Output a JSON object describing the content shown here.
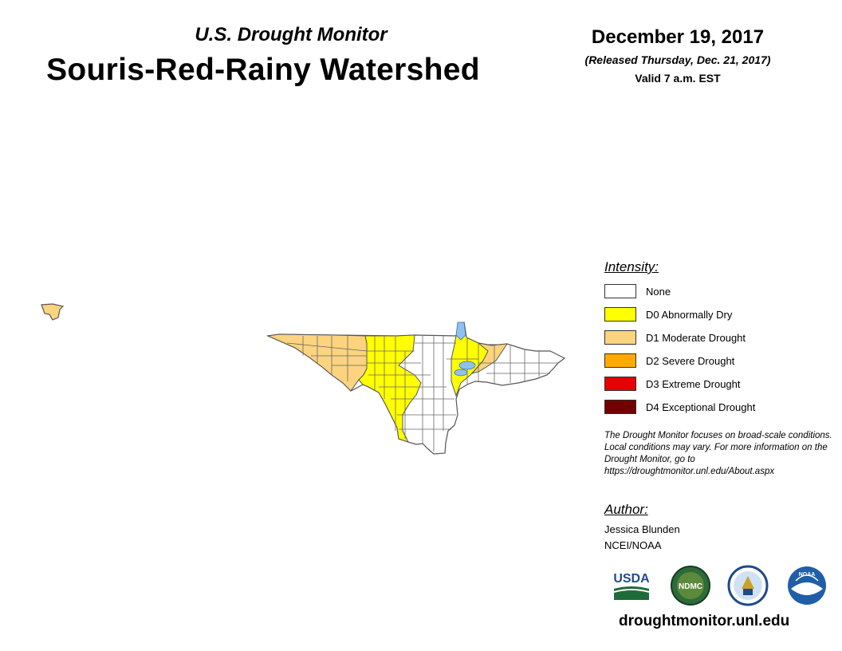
{
  "header": {
    "subtitle": "U.S. Drought Monitor",
    "title": "Souris-Red-Rainy Watershed",
    "date": "December 19, 2017",
    "released": "(Released Thursday, Dec. 21, 2017)",
    "valid": "Valid 7 a.m. EST"
  },
  "legend": {
    "title": "Intensity:",
    "items": [
      {
        "label": "None",
        "color": "#ffffff"
      },
      {
        "label": "D0 Abnormally Dry",
        "color": "#ffff00"
      },
      {
        "label": "D1 Moderate Drought",
        "color": "#fcd37f"
      },
      {
        "label": "D2 Severe Drought",
        "color": "#ffaa00"
      },
      {
        "label": "D3 Extreme Drought",
        "color": "#e60000"
      },
      {
        "label": "D4 Exceptional Drought",
        "color": "#730000"
      }
    ]
  },
  "disclaimer": "The Drought Monitor focuses on broad-scale conditions. Local conditions may vary. For more information on the Drought Monitor, go to https://droughtmonitor.unl.edu/About.aspx",
  "author": {
    "title": "Author:",
    "name": "Jessica Blunden",
    "org": "NCEI/NOAA"
  },
  "logos": {
    "usda": "USDA",
    "ndmc": "NDMC",
    "noaa": "NOAA"
  },
  "website": "droughtmonitor.unl.edu",
  "colors": {
    "water": "#8fc1ef",
    "border": "#555555"
  }
}
